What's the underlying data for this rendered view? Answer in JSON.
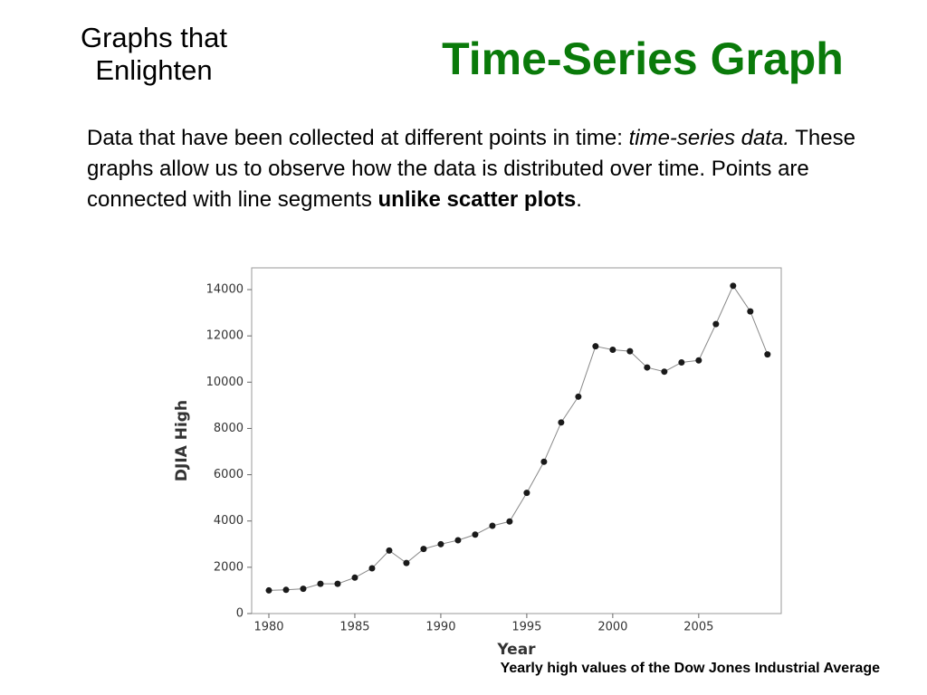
{
  "slide": {
    "header": "Graphs that Enlighten",
    "title": "Time-Series Graph",
    "body": [
      "Data that have been collected at different points in time: ",
      "time-series data.",
      " These graphs allow us to observe how the data is distributed over time. Points are connected with line segments ",
      "unlike scatter plots",
      "."
    ]
  },
  "chart_data": {
    "type": "line",
    "caption": "Yearly high values of the Dow Jones Industrial Average",
    "x_label": "Year",
    "y_label": "DJIA High",
    "x": [
      1980,
      1981,
      1982,
      1983,
      1984,
      1985,
      1986,
      1987,
      1988,
      1989,
      1990,
      1991,
      1992,
      1993,
      1994,
      1995,
      1996,
      1997,
      1998,
      1999,
      2000,
      2001,
      2002,
      2003,
      2004,
      2005,
      2006,
      2007,
      2008,
      2009
    ],
    "series": [
      {
        "name": "DJIA High",
        "color": "#888888",
        "marker_color": "#1a1a1a",
        "values": [
          1000,
          1025,
          1070,
          1287,
          1287,
          1553,
          1956,
          2722,
          2184,
          2791,
          2999,
          3168,
          3413,
          3794,
          3978,
          5216,
          6561,
          8259,
          9374,
          11550,
          11400,
          11337,
          10635,
          10454,
          10854,
          10940,
          12510,
          14165,
          13058,
          11200
        ]
      }
    ],
    "xlim": [
      1979,
      2009.8
    ],
    "xticks": [
      1980,
      1985,
      1990,
      1995,
      2000,
      2005
    ],
    "ylim": [
      0,
      14940
    ],
    "yticks": [
      0,
      2000,
      4000,
      6000,
      8000,
      10000,
      12000,
      14000
    ]
  }
}
